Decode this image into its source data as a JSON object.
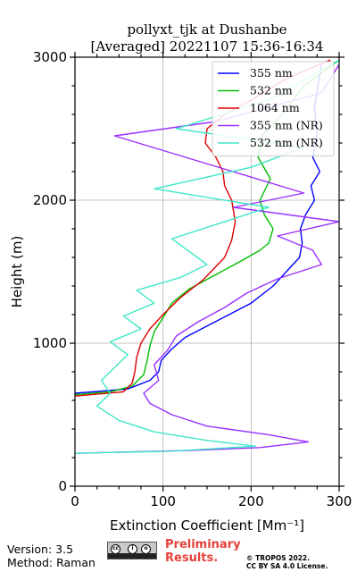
{
  "chart_data": {
    "type": "line",
    "title": "pollyxt_tjk at Dushanbe",
    "subtitle": "[Averaged] 20221107 15:36-16:34",
    "xlabel": "Extinction Coefficient [Mm⁻¹]",
    "ylabel": "Height (m)",
    "xlim": [
      0,
      300
    ],
    "ylim": [
      0,
      3000
    ],
    "xticks": [
      0,
      100,
      200,
      300
    ],
    "yticks": [
      0,
      1000,
      2000,
      3000
    ],
    "grid": true,
    "legend_position": "top-right",
    "series": [
      {
        "name": "355 nm",
        "color": "#0000ff",
        "x": [
          0,
          60,
          85,
          95,
          98,
          110,
          125,
          150,
          175,
          200,
          225,
          240,
          255,
          258,
          256,
          262,
          272,
          268,
          278,
          270,
          275,
          272,
          280
        ],
        "y": [
          650,
          680,
          740,
          800,
          880,
          960,
          1040,
          1120,
          1200,
          1280,
          1400,
          1500,
          1600,
          1700,
          1800,
          1900,
          2000,
          2100,
          2200,
          2300,
          2450,
          2650,
          2950
        ]
      },
      {
        "name": "532 nm",
        "color": "#00bb00",
        "x": [
          0,
          40,
          65,
          78,
          82,
          85,
          90,
          100,
          110,
          130,
          160,
          190,
          210,
          220,
          225,
          215,
          210,
          222,
          208,
          212,
          235,
          260,
          300
        ],
        "y": [
          640,
          660,
          700,
          780,
          880,
          980,
          1080,
          1180,
          1280,
          1380,
          1480,
          1580,
          1650,
          1700,
          1800,
          1900,
          2000,
          2150,
          2300,
          2450,
          2600,
          2800,
          2980
        ]
      },
      {
        "name": "1064 nm",
        "color": "#dd0000",
        "x": [
          0,
          55,
          65,
          68,
          70,
          75,
          85,
          100,
          120,
          145,
          170,
          178,
          182,
          178,
          170,
          168,
          160,
          148,
          150,
          170,
          200,
          240,
          290
        ],
        "y": [
          630,
          660,
          720,
          800,
          900,
          1000,
          1100,
          1200,
          1320,
          1440,
          1600,
          1720,
          1850,
          2000,
          2100,
          2200,
          2300,
          2400,
          2500,
          2600,
          2700,
          2850,
          2980
        ]
      },
      {
        "name": "355 nm (NR)",
        "color": "#9b30ff",
        "x": [
          0,
          130,
          210,
          265,
          220,
          150,
          110,
          85,
          78,
          95,
          90,
          105,
          115,
          140,
          170,
          195,
          230,
          280,
          270,
          230,
          300,
          180,
          260,
          45,
          160,
          280,
          300
        ],
        "y": [
          230,
          250,
          270,
          310,
          360,
          420,
          500,
          580,
          650,
          740,
          850,
          950,
          1050,
          1150,
          1250,
          1350,
          1450,
          1550,
          1650,
          1750,
          1850,
          1950,
          2050,
          2450,
          2550,
          2750,
          2950
        ]
      },
      {
        "name": "532 nm (NR)",
        "color": "#40e8c8",
        "x": [
          0,
          110,
          205,
          150,
          90,
          50,
          25,
          40,
          30,
          45,
          60,
          40,
          75,
          55,
          90,
          70,
          120,
          150,
          130,
          110,
          160,
          220,
          90,
          200,
          260,
          115,
          220,
          300
        ],
        "y": [
          230,
          245,
          280,
          320,
          380,
          460,
          560,
          650,
          740,
          830,
          920,
          1010,
          1100,
          1190,
          1280,
          1370,
          1460,
          1550,
          1640,
          1730,
          1830,
          1950,
          2080,
          2230,
          2370,
          2500,
          2700,
          2980
        ]
      }
    ]
  },
  "footer": {
    "version": "Version: 3.5",
    "method": "Method: Raman",
    "preliminary_line1": "Preliminary",
    "preliminary_line2": "Results.",
    "copyright_line1": "© TROPOS 2022.",
    "copyright_line2": "CC BY SA 4.0 License.",
    "license_badge": "cc-by-sa-icon"
  }
}
